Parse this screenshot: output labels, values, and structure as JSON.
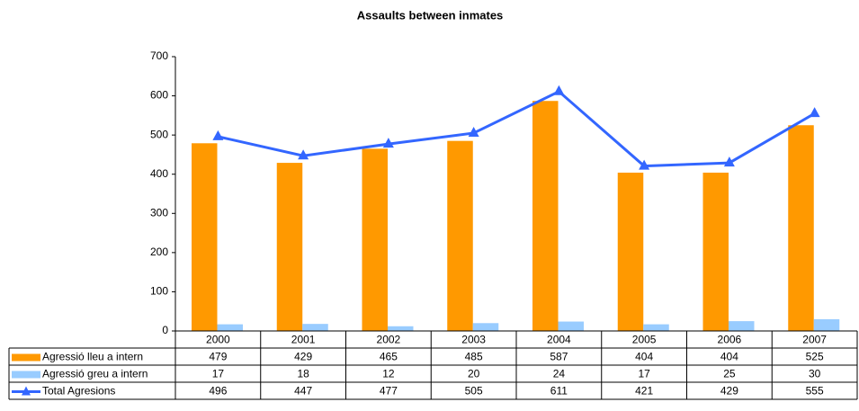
{
  "chart_data": {
    "type": "bar_line",
    "title": "Assaults between inmates",
    "categories": [
      "2000",
      "2001",
      "2002",
      "2003",
      "2004",
      "2005",
      "2006",
      "2007"
    ],
    "series": [
      {
        "name": "Agressió lleu a intern",
        "type": "bar",
        "color": "#ff9900",
        "values": [
          479,
          429,
          465,
          485,
          587,
          404,
          404,
          525
        ]
      },
      {
        "name": "Agressió greu a intern",
        "type": "bar",
        "color": "#99ccff",
        "values": [
          17,
          18,
          12,
          20,
          24,
          17,
          25,
          30
        ]
      },
      {
        "name": "Total Agresions",
        "type": "line",
        "color": "#3366ff",
        "values": [
          496,
          447,
          477,
          505,
          611,
          421,
          429,
          555
        ]
      }
    ],
    "ylim": [
      0,
      700
    ],
    "yticks": [
      0,
      100,
      200,
      300,
      400,
      500,
      600,
      700
    ],
    "grid": false,
    "data_table": true
  }
}
